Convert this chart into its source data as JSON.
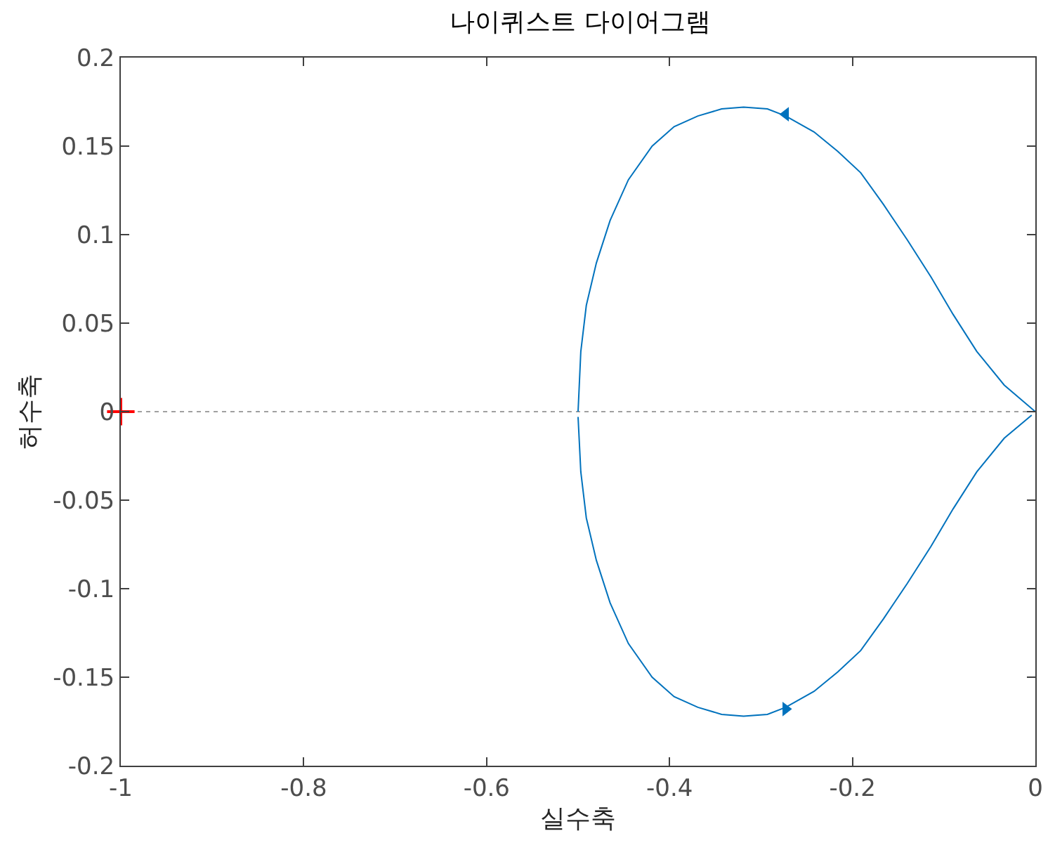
{
  "chart_data": {
    "type": "line",
    "title": "나이퀴스트 다이어그램",
    "xlabel": "실수축",
    "ylabel": "허수축",
    "xlim": [
      -1,
      0
    ],
    "xticks": [
      {
        "value": -1,
        "label": "-1"
      },
      {
        "value": -0.8,
        "label": "-0.8"
      },
      {
        "value": -0.6,
        "label": "-0.6"
      },
      {
        "value": -0.4,
        "label": "-0.4"
      },
      {
        "value": -0.2,
        "label": "-0.2"
      },
      {
        "value": 0,
        "label": "0"
      }
    ],
    "ylim": [
      -0.2,
      0.2
    ],
    "yticks": [
      {
        "value": -0.2,
        "label": "-0.2"
      },
      {
        "value": -0.15,
        "label": "-0.15"
      },
      {
        "value": -0.1,
        "label": "-0.1"
      },
      {
        "value": -0.05,
        "label": "-0.05"
      },
      {
        "value": 0,
        "label": "0"
      },
      {
        "value": 0.05,
        "label": "0.05"
      },
      {
        "value": 0.1,
        "label": "0.1"
      },
      {
        "value": 0.15,
        "label": "0.15"
      },
      {
        "value": 0.2,
        "label": "0.2"
      }
    ],
    "grid": false,
    "legend": false,
    "line_style": "solid",
    "marker": "none",
    "ref_lines": [
      {
        "axis": "y",
        "value": 0,
        "color": "#a0a0a0",
        "line_style": "dotted"
      }
    ],
    "series": [
      {
        "type": "line",
        "color": "#0072bd",
        "x": [
          -0.5,
          -0.497,
          -0.491,
          -0.48,
          -0.465,
          -0.445,
          -0.419,
          -0.395,
          -0.369,
          -0.343,
          -0.319,
          -0.293,
          -0.273,
          -0.242,
          -0.216,
          -0.191,
          -0.166,
          -0.14,
          -0.114,
          -0.09,
          -0.064,
          -0.034,
          0
        ],
        "values": [
          0,
          0.034,
          0.06,
          0.084,
          0.108,
          0.131,
          0.15,
          0.161,
          0.167,
          0.171,
          0.172,
          0.171,
          0.167,
          0.158,
          0.147,
          0.135,
          0.117,
          0.097,
          0.076,
          0.055,
          0.034,
          0.015,
          0
        ]
      },
      {
        "color": "#0072bd",
        "x": [
          -0.5,
          -0.497,
          -0.491,
          -0.48,
          -0.465,
          -0.445,
          -0.419,
          -0.395,
          -0.369,
          -0.343,
          -0.319,
          -0.293,
          -0.273,
          -0.242,
          -0.216,
          -0.191,
          -0.166,
          -0.14,
          -0.114,
          -0.09,
          -0.064,
          -0.034,
          -0.004
        ],
        "values": [
          -0.003,
          -0.034,
          -0.06,
          -0.084,
          -0.108,
          -0.131,
          -0.15,
          -0.161,
          -0.167,
          -0.171,
          -0.172,
          -0.171,
          -0.167,
          -0.158,
          -0.147,
          -0.135,
          -0.117,
          -0.097,
          -0.076,
          -0.055,
          -0.034,
          -0.015,
          -0.002
        ]
      },
      {
        "type": "scatter",
        "color": "#0072bd",
        "marker": "triangle",
        "x": [
          -0.273,
          -0.273
        ],
        "values": [
          0.168,
          -0.168
        ]
      },
      {
        "type": "scatter",
        "color": "#ff0000",
        "marker": "cross",
        "x": [
          -1
        ],
        "values": [
          0
        ]
      }
    ]
  }
}
